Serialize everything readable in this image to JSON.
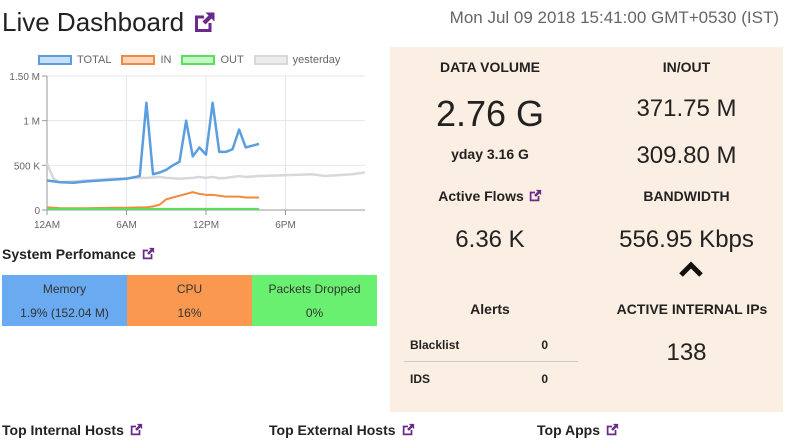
{
  "header": {
    "title": "Live Dashboard",
    "datetime": "Mon Jul 09 2018 15:41:00 GMT+0530 (IST)"
  },
  "colors": {
    "accent": "#6a2a8c",
    "total": "#5b9ee0",
    "in": "#f08a40",
    "out": "#58e058",
    "yesterday": "#d8d8d8",
    "memory_bg": "#6aaaf0",
    "cpu_bg": "#fa9850",
    "packets_bg": "#6af070",
    "panel_bg": "#fbeee2"
  },
  "chart_data": {
    "type": "line",
    "legend_position": "top",
    "grid": true,
    "series": [
      {
        "name": "TOTAL"
      },
      {
        "name": "IN"
      },
      {
        "name": "OUT"
      },
      {
        "name": "yesterday"
      }
    ],
    "y_ticks": [
      "0",
      "500 K",
      "1 M",
      "1.50 M"
    ],
    "x_ticks": [
      "12AM",
      "6AM",
      "12PM",
      "6PM"
    ],
    "ylim": [
      0,
      1500000
    ],
    "x_hours": [
      0,
      0.5,
      1,
      2,
      3,
      4,
      5,
      6,
      7,
      7.5,
      8,
      8.5,
      9,
      9.5,
      10,
      10.5,
      11,
      11.5,
      12,
      12.5,
      13,
      13.5,
      14,
      14.5,
      15,
      15.5,
      16,
      17,
      18,
      19,
      20,
      21,
      22,
      23,
      24
    ],
    "total": [
      330000,
      320000,
      310000,
      305000,
      320000,
      330000,
      340000,
      350000,
      380000,
      1200000,
      400000,
      420000,
      450000,
      500000,
      540000,
      1000000,
      600000,
      700000,
      620000,
      1200000,
      650000,
      650000,
      680000,
      900000,
      700000,
      720000,
      740000
    ],
    "in": [
      30000,
      25000,
      20000,
      20000,
      20000,
      22000,
      25000,
      25000,
      30000,
      30000,
      40000,
      60000,
      120000,
      140000,
      160000,
      180000,
      200000,
      180000,
      170000,
      170000,
      160000,
      150000,
      150000,
      150000,
      140000,
      140000,
      140000
    ],
    "out": [
      12000,
      12000,
      12000,
      12000,
      12000,
      12000,
      12000,
      12000,
      12000,
      12000,
      12000,
      12000,
      12000,
      12000,
      12000,
      12000,
      12000,
      12000,
      12000,
      12000,
      12000,
      12000,
      12000,
      12000,
      12000,
      12000,
      12000
    ],
    "yesterday": [
      520000,
      350000,
      310000,
      320000,
      330000,
      340000,
      350000,
      355000,
      360000,
      360000,
      365000,
      370000,
      360000,
      355000,
      350000,
      355000,
      360000,
      370000,
      360000,
      370000,
      355000,
      360000,
      370000,
      380000,
      370000,
      375000,
      380000,
      385000,
      390000,
      395000,
      400000,
      380000,
      390000,
      400000,
      420000
    ]
  },
  "system": {
    "heading": "System Perfomance",
    "memory_label": "Memory",
    "memory_value": "1.9% (152.04 M)",
    "cpu_label": "CPU",
    "cpu_value": "16%",
    "packets_label": "Packets Dropped",
    "packets_value": "0%"
  },
  "panel": {
    "data_volume_label": "DATA VOLUME",
    "data_volume_value": "2.76 G",
    "yday_label": "yday 3.16 G",
    "inout_label": "IN/OUT",
    "in_value": "371.75 M",
    "out_value": "309.80 M",
    "active_flows_label": "Active Flows",
    "active_flows_value": "6.36 K",
    "bandwidth_label": "BANDWIDTH",
    "bandwidth_value": "556.95 Kbps",
    "alerts_label": "Alerts",
    "alerts": [
      {
        "name": "Blacklist",
        "count": "0"
      },
      {
        "name": "IDS",
        "count": "0"
      }
    ],
    "internal_ips_label": "ACTIVE INTERNAL IPs",
    "internal_ips_value": "138"
  },
  "bottom": {
    "internal_hosts": "Top Internal Hosts",
    "external_hosts": "Top External Hosts",
    "apps": "Top Apps"
  }
}
